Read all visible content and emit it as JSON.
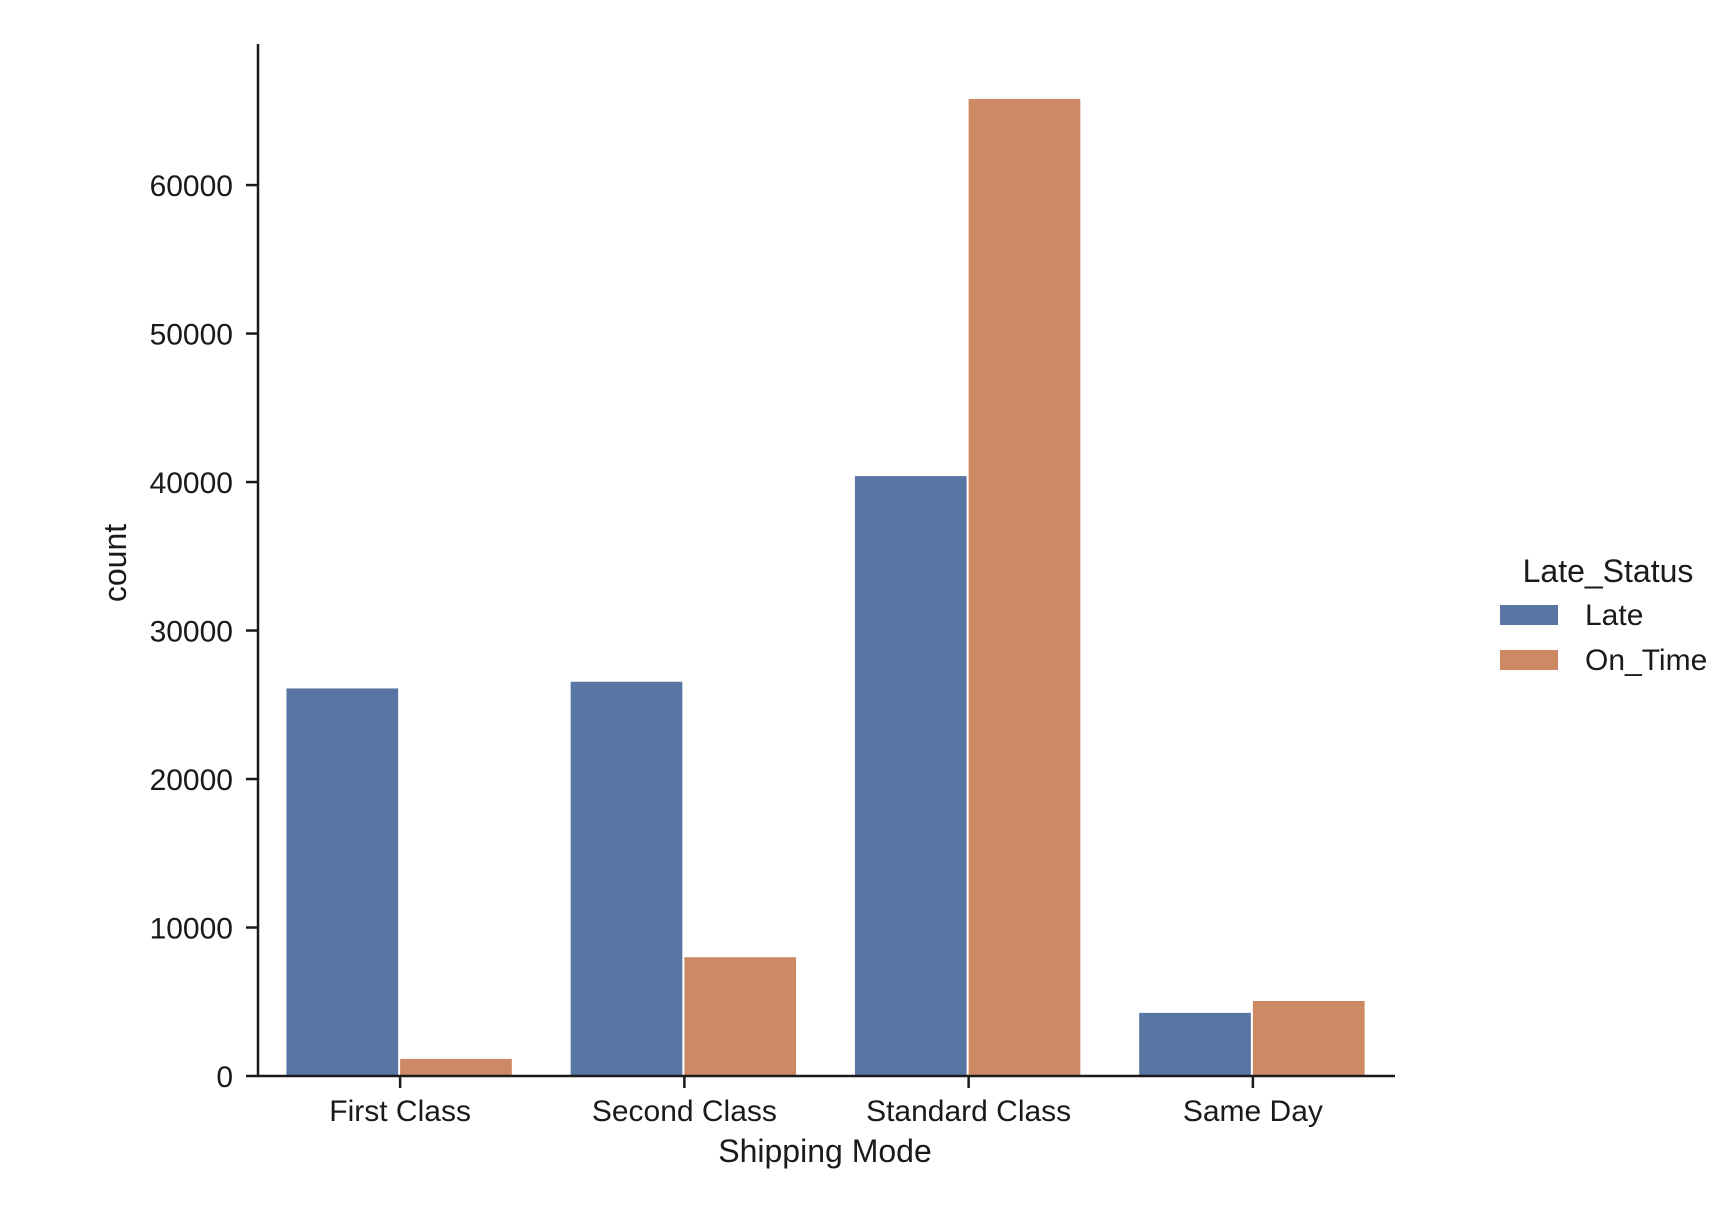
{
  "chart_data": {
    "type": "bar",
    "xlabel": "Shipping Mode",
    "ylabel": "count",
    "ylim": [
      0,
      69500
    ],
    "yticks": [
      0,
      10000,
      20000,
      30000,
      40000,
      50000,
      60000
    ],
    "categories": [
      "First Class",
      "Second Class",
      "Standard Class",
      "Same Day"
    ],
    "legend": {
      "title": "Late_Status",
      "position": "right"
    },
    "grid": false,
    "series": [
      {
        "name": "Late",
        "color": "#5975a4",
        "values": [
          26100,
          26550,
          40400,
          4250
        ]
      },
      {
        "name": "On_Time",
        "color": "#cc8963",
        "values": [
          1150,
          8000,
          65800,
          5050
        ]
      }
    ]
  }
}
